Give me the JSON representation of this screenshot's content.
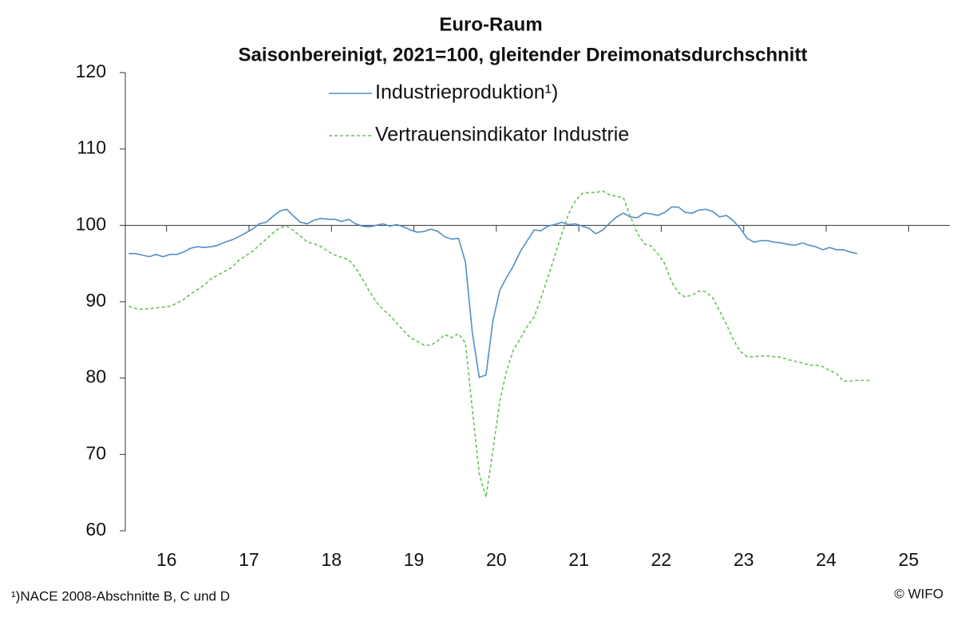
{
  "chart_data": {
    "type": "line",
    "title": "Euro-Raum",
    "subtitle": "Saisonbereinigt, 2021=100, gleitender Dreimonatsdurchschnitt",
    "footnote": "¹)NACE 2008-Abschnitte B, C und D",
    "source": "© WIFO",
    "x": [
      2016.042,
      2016.125,
      2016.208,
      2016.292,
      2016.375,
      2016.458,
      2016.542,
      2016.625,
      2016.708,
      2016.792,
      2016.875,
      2016.958,
      2017.042,
      2017.125,
      2017.208,
      2017.292,
      2017.375,
      2017.458,
      2017.542,
      2017.625,
      2017.708,
      2017.792,
      2017.875,
      2017.958,
      2018.042,
      2018.125,
      2018.208,
      2018.292,
      2018.375,
      2018.458,
      2018.542,
      2018.625,
      2018.708,
      2018.792,
      2018.875,
      2018.958,
      2019.042,
      2019.125,
      2019.208,
      2019.292,
      2019.375,
      2019.458,
      2019.542,
      2019.625,
      2019.708,
      2019.792,
      2019.875,
      2019.958,
      2020.042,
      2020.125,
      2020.208,
      2020.292,
      2020.375,
      2020.458,
      2020.542,
      2020.625,
      2020.708,
      2020.792,
      2020.875,
      2020.958,
      2021.042,
      2021.125,
      2021.208,
      2021.292,
      2021.375,
      2021.458,
      2021.542,
      2021.625,
      2021.708,
      2021.792,
      2021.875,
      2021.958,
      2022.042,
      2022.125,
      2022.208,
      2022.292,
      2022.375,
      2022.458,
      2022.542,
      2022.625,
      2022.708,
      2022.792,
      2022.875,
      2022.958,
      2023.042,
      2023.125,
      2023.208,
      2023.292,
      2023.375,
      2023.458,
      2023.542,
      2023.625,
      2023.708,
      2023.792,
      2023.875,
      2023.958,
      2024.042,
      2024.125,
      2024.208,
      2024.292,
      2024.375,
      2024.458,
      2024.542,
      2024.625,
      2024.708,
      2024.792,
      2024.875,
      2024.958,
      2025.042
    ],
    "series": [
      {
        "name": "Industrieproduktion¹)",
        "color": "#4f8fc6",
        "dash": false,
        "values": [
          96.3,
          96.3,
          96.1,
          95.9,
          96.2,
          95.9,
          96.2,
          96.2,
          96.5,
          97.0,
          97.2,
          97.1,
          97.2,
          97.4,
          97.8,
          98.1,
          98.5,
          99.0,
          99.5,
          100.2,
          100.4,
          101.2,
          101.9,
          102.1,
          101.2,
          100.4,
          100.2,
          100.7,
          100.9,
          100.8,
          100.8,
          100.5,
          100.8,
          100.2,
          99.9,
          99.8,
          100.0,
          100.2,
          99.9,
          100.1,
          99.8,
          99.4,
          99.1,
          99.2,
          99.5,
          99.2,
          98.5,
          98.2,
          98.3,
          95.2,
          86.0,
          80.1,
          80.4,
          87.5,
          91.5,
          93.2,
          94.7,
          96.6,
          98.0,
          99.4,
          99.3,
          99.9,
          100.1,
          100.4,
          100.1,
          100.2,
          99.9,
          99.6,
          98.9,
          99.4,
          100.3,
          101.1,
          101.6,
          101.1,
          101.0,
          101.6,
          101.5,
          101.3,
          101.7,
          102.4,
          102.4,
          101.7,
          101.6,
          102.0,
          102.1,
          101.8,
          101.1,
          101.3,
          100.6,
          99.6,
          98.3,
          97.8,
          98.0,
          98.0,
          97.8,
          97.7,
          97.5,
          97.4,
          97.7,
          97.4,
          97.2,
          96.8,
          97.1,
          96.8,
          96.8,
          96.5,
          96.3,
          null,
          null
        ]
      },
      {
        "name": "Vertrauensindikator Industrie",
        "color": "#6abf5a",
        "dash": true,
        "values": [
          89.4,
          89.1,
          89.0,
          89.1,
          89.2,
          89.3,
          89.4,
          89.8,
          90.3,
          91.0,
          91.6,
          92.2,
          93.0,
          93.5,
          94.0,
          94.5,
          95.4,
          96.0,
          96.6,
          97.4,
          98.2,
          99.0,
          99.7,
          99.9,
          99.3,
          98.6,
          97.8,
          97.6,
          97.2,
          96.6,
          96.1,
          95.8,
          95.5,
          94.5,
          93.0,
          91.4,
          90.0,
          89.0,
          88.2,
          87.2,
          86.2,
          85.3,
          84.8,
          84.3,
          84.3,
          84.9,
          85.7,
          85.3,
          85.8,
          84.6,
          76.0,
          67.5,
          64.4,
          70.5,
          77.0,
          81.0,
          83.7,
          85.2,
          86.8,
          88.0,
          90.5,
          93.2,
          96.0,
          98.8,
          101.5,
          103.2,
          104.2,
          104.3,
          104.3,
          104.5,
          104.0,
          103.8,
          103.6,
          101.2,
          99.0,
          97.6,
          97.3,
          96.3,
          95.0,
          92.6,
          91.2,
          90.6,
          90.9,
          91.4,
          91.3,
          90.5,
          88.8,
          87.0,
          85.0,
          83.5,
          82.8,
          82.8,
          82.9,
          82.9,
          82.8,
          82.7,
          82.4,
          82.2,
          82.0,
          81.7,
          81.7,
          81.5,
          81.0,
          80.6,
          79.6,
          79.6,
          79.7,
          79.7,
          79.7
        ]
      }
    ],
    "xlim": [
      2016,
      2026
    ],
    "xticks": [
      {
        "value": 2016.5,
        "label": "16"
      },
      {
        "value": 2017.5,
        "label": "17"
      },
      {
        "value": 2018.5,
        "label": "18"
      },
      {
        "value": 2019.5,
        "label": "19"
      },
      {
        "value": 2020.5,
        "label": "20"
      },
      {
        "value": 2021.5,
        "label": "21"
      },
      {
        "value": 2022.5,
        "label": "22"
      },
      {
        "value": 2023.5,
        "label": "23"
      },
      {
        "value": 2024.5,
        "label": "24"
      },
      {
        "value": 2025.5,
        "label": "25"
      }
    ],
    "ylim": [
      60,
      120
    ],
    "yticks": [
      60,
      70,
      80,
      90,
      100,
      110,
      120
    ],
    "x_axis_crossing": 100,
    "grid": false
  }
}
